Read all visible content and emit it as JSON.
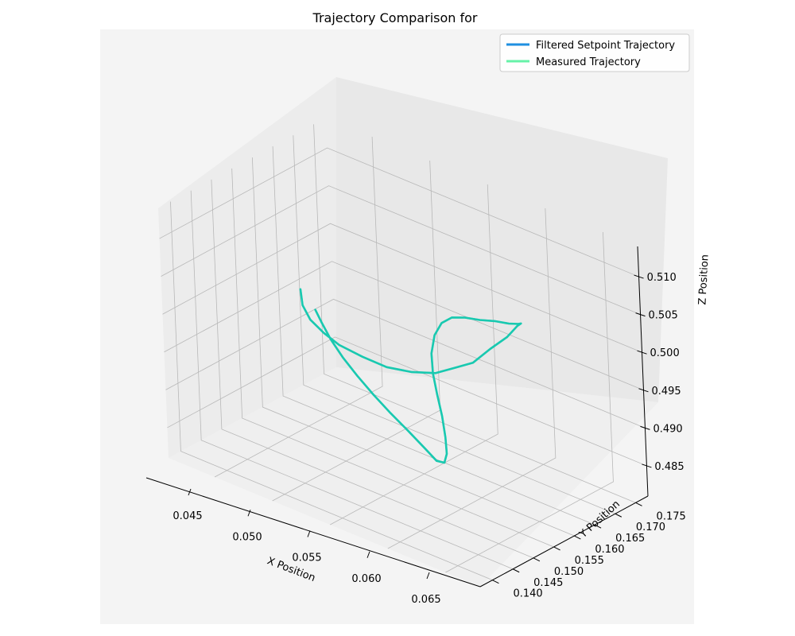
{
  "chart_data": {
    "type": "line",
    "projection": "3d",
    "title": "Trajectory Comparison for",
    "xlabel": "X Position",
    "ylabel": "Y Position",
    "zlabel": "Z Position",
    "xlim": [
      0.041,
      0.068
    ],
    "ylim": [
      0.137,
      0.178
    ],
    "zlim": [
      -0.514,
      -0.481
    ],
    "zaxis_inverted": true,
    "x_ticks": [
      "0.045",
      "0.050",
      "0.055",
      "0.060",
      "0.065"
    ],
    "x_tick_values": [
      0.045,
      0.05,
      0.055,
      0.06,
      0.065
    ],
    "y_ticks": [
      "0.140",
      "0.145",
      "0.150",
      "0.155",
      "0.160",
      "0.165",
      "0.170",
      "0.175"
    ],
    "y_tick_values": [
      0.14,
      0.145,
      0.15,
      0.155,
      0.16,
      0.165,
      0.17,
      0.175
    ],
    "z_ticks": [
      "0.485",
      "0.490",
      "0.495",
      "0.500",
      "0.505",
      "0.510"
    ],
    "z_tick_values": [
      -0.485,
      -0.49,
      -0.495,
      -0.5,
      -0.505,
      -0.51
    ],
    "grid": true,
    "legend": {
      "position": "top-right",
      "entries": [
        "Filtered Setpoint Trajectory",
        "Measured Trajectory"
      ]
    },
    "colors": {
      "setpoint": "#1f8fe0",
      "measured": "#66f2a8",
      "overlap": "#19c9b0",
      "pane": "#f2f2f2",
      "grid": "#b8b8b8"
    },
    "series": [
      {
        "name": "Filtered Setpoint Trajectory",
        "x": [
          0.0455,
          0.046,
          0.047,
          0.0485,
          0.05,
          0.052,
          0.054,
          0.056,
          0.058,
          0.0595,
          0.061,
          0.062,
          0.0628,
          0.063,
          0.0626,
          0.0618,
          0.0606,
          0.0592,
          0.0578,
          0.0565,
          0.0555,
          0.0548,
          0.0545,
          0.0546,
          0.0551,
          0.0558,
          0.0566,
          0.0573,
          0.0578,
          0.058,
          0.0578,
          0.0572,
          0.0563,
          0.0552,
          0.0541,
          0.053,
          0.052,
          0.0512,
          0.0506,
          0.0502
        ],
        "y": [
          0.158,
          0.157,
          0.156,
          0.155,
          0.1545,
          0.1545,
          0.1548,
          0.1552,
          0.1556,
          0.156,
          0.1565,
          0.158,
          0.16,
          0.162,
          0.164,
          0.1655,
          0.1665,
          0.167,
          0.1672,
          0.1672,
          0.1668,
          0.1662,
          0.1652,
          0.164,
          0.1628,
          0.1617,
          0.1605,
          0.1592,
          0.158,
          0.1568,
          0.1555,
          0.1543,
          0.1531,
          0.152,
          0.1511,
          0.1504,
          0.1498,
          0.1493,
          0.1489,
          0.1486
        ],
        "z": [
          -0.5,
          -0.4985,
          -0.4975,
          -0.497,
          -0.4965,
          -0.4962,
          -0.496,
          -0.4965,
          -0.4975,
          -0.499,
          -0.5005,
          -0.5025,
          -0.504,
          -0.505,
          -0.5045,
          -0.5035,
          -0.5025,
          -0.5018,
          -0.501,
          -0.5005,
          -0.5,
          -0.499,
          -0.4975,
          -0.4955,
          -0.4935,
          -0.4915,
          -0.4895,
          -0.4875,
          -0.486,
          -0.4853,
          -0.4858,
          -0.4875,
          -0.4895,
          -0.4915,
          -0.4935,
          -0.4955,
          -0.4975,
          -0.4995,
          -0.5015,
          -0.503
        ]
      },
      {
        "name": "Measured Trajectory",
        "x": [
          0.0455,
          0.046,
          0.047,
          0.0485,
          0.05,
          0.052,
          0.054,
          0.056,
          0.058,
          0.0595,
          0.061,
          0.062,
          0.0628,
          0.063,
          0.0626,
          0.0618,
          0.0606,
          0.0592,
          0.0578,
          0.0565,
          0.0555,
          0.0548,
          0.0545,
          0.0546,
          0.0551,
          0.0558,
          0.0566,
          0.0573,
          0.0578,
          0.058,
          0.0578,
          0.0572,
          0.0563,
          0.0552,
          0.0541,
          0.053,
          0.052,
          0.0512,
          0.0506,
          0.0502
        ],
        "y": [
          0.158,
          0.157,
          0.156,
          0.155,
          0.1545,
          0.1545,
          0.1548,
          0.1552,
          0.1556,
          0.156,
          0.1565,
          0.158,
          0.16,
          0.162,
          0.164,
          0.1655,
          0.1665,
          0.167,
          0.1672,
          0.1672,
          0.1668,
          0.1662,
          0.1652,
          0.164,
          0.1628,
          0.1617,
          0.1605,
          0.1592,
          0.158,
          0.1568,
          0.1555,
          0.1543,
          0.1531,
          0.152,
          0.1511,
          0.1504,
          0.1498,
          0.1493,
          0.1489,
          0.1486
        ],
        "z": [
          -0.5,
          -0.4985,
          -0.4975,
          -0.497,
          -0.4965,
          -0.4962,
          -0.496,
          -0.4965,
          -0.4975,
          -0.499,
          -0.5005,
          -0.5025,
          -0.504,
          -0.505,
          -0.5045,
          -0.5035,
          -0.5025,
          -0.5018,
          -0.501,
          -0.5005,
          -0.5,
          -0.499,
          -0.4975,
          -0.4955,
          -0.4935,
          -0.4915,
          -0.4895,
          -0.4875,
          -0.486,
          -0.4853,
          -0.4858,
          -0.4875,
          -0.4895,
          -0.4915,
          -0.4935,
          -0.4955,
          -0.4975,
          -0.4995,
          -0.5015,
          -0.503
        ]
      }
    ]
  }
}
